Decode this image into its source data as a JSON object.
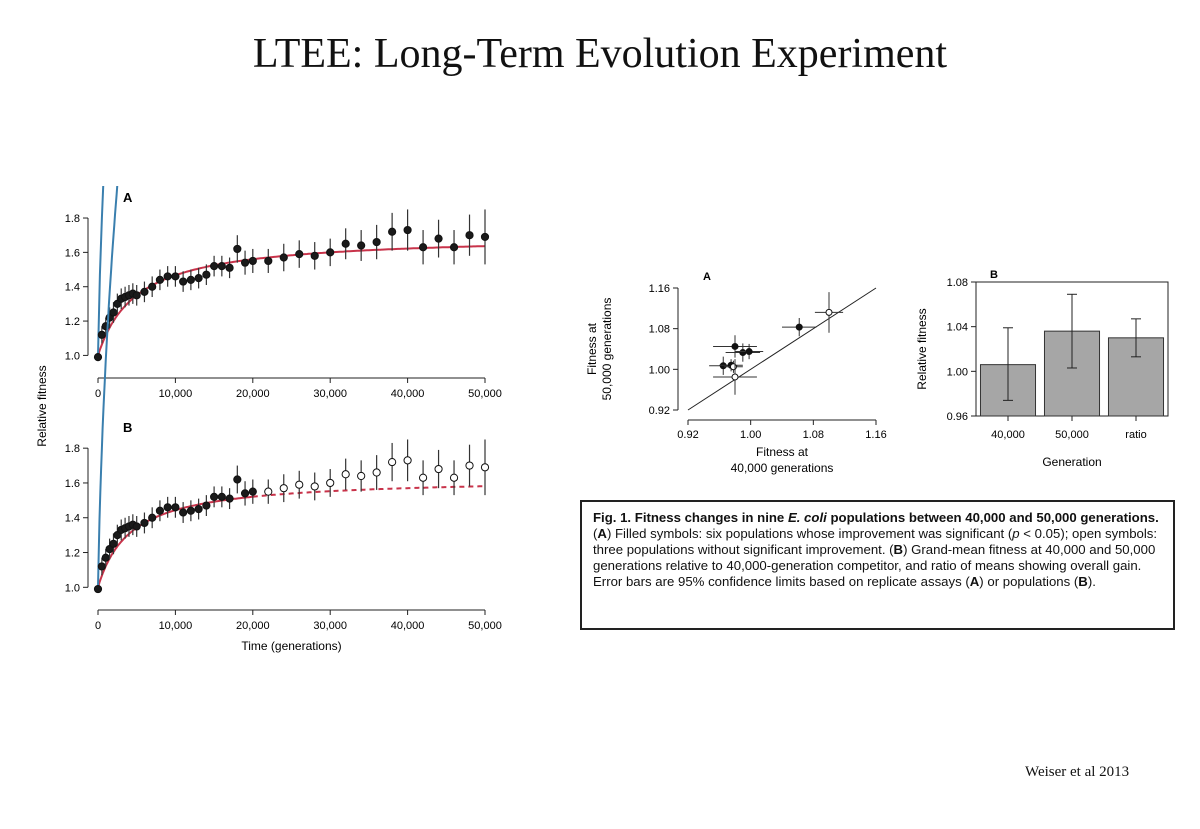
{
  "slide": {
    "title": "LTEE: Long-Term Evolution Experiment",
    "citation": "Weiser et al 2013"
  },
  "caption": {
    "bold_lead": "Fig. 1. Fitness changes in nine",
    "bold_species": "E. coli",
    "bold_tail": "populations between 40,000 and 50,000 generations.",
    "part1_label": "A",
    "part1_text": "Filled symbols: six populations whose improvement was significant",
    "p_symbol": "p",
    "part1_text2": "< 0.05); open symbols: three populations without significant improvement.",
    "part2_label": "B",
    "part2_text": "Grand-mean fitness at 40,000 and 50,000 generations relative to 40,000-generation competitor, and ratio of means showing overall gain. Error bars are 95% confidence limits based on replicate assays",
    "ref_a": "A",
    "or_text": "or populations",
    "ref_b": "B"
  },
  "colors": {
    "hyperbolic_fit": "#c8334a",
    "power_law_fit": "#3a7fae",
    "bar_fill": "#a6a6a6",
    "marker": "#1a1a1a"
  },
  "chart_data": [
    {
      "id": "panel-A-top",
      "type": "scatter",
      "panel_label": "A",
      "ylabel": "Relative fitness",
      "xlabel": "",
      "xlim": [
        0,
        50000
      ],
      "ylim": [
        0.95,
        1.87
      ],
      "x_ticks": [
        0,
        10000,
        20000,
        30000,
        40000,
        50000
      ],
      "x_tick_labels": [
        "0",
        "10,000",
        "20,000",
        "30,000",
        "40,000",
        "50,000"
      ],
      "y_ticks": [
        1.0,
        1.2,
        1.4,
        1.6,
        1.8
      ],
      "y_tick_labels": [
        "1.0",
        "1.2",
        "1.4",
        "1.6",
        "1.8"
      ],
      "points": [
        {
          "x": 0,
          "y": 0.99,
          "e": 0.0
        },
        {
          "x": 500,
          "y": 1.12,
          "e": 0.05
        },
        {
          "x": 1000,
          "y": 1.17,
          "e": 0.05
        },
        {
          "x": 1500,
          "y": 1.22,
          "e": 0.06
        },
        {
          "x": 2000,
          "y": 1.25,
          "e": 0.06
        },
        {
          "x": 2500,
          "y": 1.3,
          "e": 0.06
        },
        {
          "x": 3000,
          "y": 1.33,
          "e": 0.06
        },
        {
          "x": 3500,
          "y": 1.34,
          "e": 0.06
        },
        {
          "x": 4000,
          "y": 1.35,
          "e": 0.06
        },
        {
          "x": 4500,
          "y": 1.36,
          "e": 0.06
        },
        {
          "x": 5000,
          "y": 1.35,
          "e": 0.06
        },
        {
          "x": 6000,
          "y": 1.37,
          "e": 0.06
        },
        {
          "x": 7000,
          "y": 1.4,
          "e": 0.06
        },
        {
          "x": 8000,
          "y": 1.44,
          "e": 0.06
        },
        {
          "x": 9000,
          "y": 1.46,
          "e": 0.06
        },
        {
          "x": 10000,
          "y": 1.46,
          "e": 0.06
        },
        {
          "x": 11000,
          "y": 1.43,
          "e": 0.06
        },
        {
          "x": 12000,
          "y": 1.44,
          "e": 0.06
        },
        {
          "x": 13000,
          "y": 1.45,
          "e": 0.06
        },
        {
          "x": 14000,
          "y": 1.47,
          "e": 0.06
        },
        {
          "x": 15000,
          "y": 1.52,
          "e": 0.06
        },
        {
          "x": 16000,
          "y": 1.52,
          "e": 0.06
        },
        {
          "x": 17000,
          "y": 1.51,
          "e": 0.06
        },
        {
          "x": 18000,
          "y": 1.62,
          "e": 0.08
        },
        {
          "x": 19000,
          "y": 1.54,
          "e": 0.07
        },
        {
          "x": 20000,
          "y": 1.55,
          "e": 0.07
        },
        {
          "x": 22000,
          "y": 1.55,
          "e": 0.07
        },
        {
          "x": 24000,
          "y": 1.57,
          "e": 0.08
        },
        {
          "x": 26000,
          "y": 1.59,
          "e": 0.08
        },
        {
          "x": 28000,
          "y": 1.58,
          "e": 0.08
        },
        {
          "x": 30000,
          "y": 1.6,
          "e": 0.08
        },
        {
          "x": 32000,
          "y": 1.65,
          "e": 0.09
        },
        {
          "x": 34000,
          "y": 1.64,
          "e": 0.09
        },
        {
          "x": 36000,
          "y": 1.66,
          "e": 0.1
        },
        {
          "x": 38000,
          "y": 1.72,
          "e": 0.11
        },
        {
          "x": 40000,
          "y": 1.73,
          "e": 0.12
        },
        {
          "x": 42000,
          "y": 1.63,
          "e": 0.1
        },
        {
          "x": 44000,
          "y": 1.68,
          "e": 0.11
        },
        {
          "x": 46000,
          "y": 1.63,
          "e": 0.1
        },
        {
          "x": 48000,
          "y": 1.7,
          "e": 0.12
        },
        {
          "x": 50000,
          "y": 1.69,
          "e": 0.16
        }
      ],
      "fits": [
        {
          "kind": "hyperbolic",
          "color": "#c8334a",
          "a": 0.7,
          "b": 5000,
          "x_end": 50000,
          "dashed_from": null
        },
        {
          "kind": "power-law",
          "color": "#3a7fae",
          "a": 0.0055,
          "b": 0.445,
          "x_end": 50000,
          "dashed_from": null
        }
      ]
    },
    {
      "id": "panel-B-bottom",
      "type": "scatter",
      "panel_label": "B",
      "ylabel": "",
      "xlabel": "Time (generations)",
      "xlim": [
        0,
        50000
      ],
      "ylim": [
        0.95,
        1.87
      ],
      "x_ticks": [
        0,
        10000,
        20000,
        30000,
        40000,
        50000
      ],
      "x_tick_labels": [
        "0",
        "10,000",
        "20,000",
        "30,000",
        "40,000",
        "50,000"
      ],
      "y_ticks": [
        1.0,
        1.2,
        1.4,
        1.6,
        1.8
      ],
      "y_tick_labels": [
        "1.0",
        "1.2",
        "1.4",
        "1.6",
        "1.8"
      ],
      "open_from_x": 22000,
      "points": [
        {
          "x": 0,
          "y": 0.99,
          "e": 0.0
        },
        {
          "x": 500,
          "y": 1.12,
          "e": 0.05
        },
        {
          "x": 1000,
          "y": 1.17,
          "e": 0.05
        },
        {
          "x": 1500,
          "y": 1.22,
          "e": 0.06
        },
        {
          "x": 2000,
          "y": 1.25,
          "e": 0.06
        },
        {
          "x": 2500,
          "y": 1.3,
          "e": 0.06
        },
        {
          "x": 3000,
          "y": 1.33,
          "e": 0.06
        },
        {
          "x": 3500,
          "y": 1.34,
          "e": 0.06
        },
        {
          "x": 4000,
          "y": 1.35,
          "e": 0.06
        },
        {
          "x": 4500,
          "y": 1.36,
          "e": 0.06
        },
        {
          "x": 5000,
          "y": 1.35,
          "e": 0.06
        },
        {
          "x": 6000,
          "y": 1.37,
          "e": 0.06
        },
        {
          "x": 7000,
          "y": 1.4,
          "e": 0.06
        },
        {
          "x": 8000,
          "y": 1.44,
          "e": 0.06
        },
        {
          "x": 9000,
          "y": 1.46,
          "e": 0.06
        },
        {
          "x": 10000,
          "y": 1.46,
          "e": 0.06
        },
        {
          "x": 11000,
          "y": 1.43,
          "e": 0.06
        },
        {
          "x": 12000,
          "y": 1.44,
          "e": 0.06
        },
        {
          "x": 13000,
          "y": 1.45,
          "e": 0.06
        },
        {
          "x": 14000,
          "y": 1.47,
          "e": 0.06
        },
        {
          "x": 15000,
          "y": 1.52,
          "e": 0.06
        },
        {
          "x": 16000,
          "y": 1.52,
          "e": 0.06
        },
        {
          "x": 17000,
          "y": 1.51,
          "e": 0.06
        },
        {
          "x": 18000,
          "y": 1.62,
          "e": 0.08
        },
        {
          "x": 19000,
          "y": 1.54,
          "e": 0.07
        },
        {
          "x": 20000,
          "y": 1.55,
          "e": 0.07
        },
        {
          "x": 22000,
          "y": 1.55,
          "e": 0.07
        },
        {
          "x": 24000,
          "y": 1.57,
          "e": 0.08
        },
        {
          "x": 26000,
          "y": 1.59,
          "e": 0.08
        },
        {
          "x": 28000,
          "y": 1.58,
          "e": 0.08
        },
        {
          "x": 30000,
          "y": 1.6,
          "e": 0.08
        },
        {
          "x": 32000,
          "y": 1.65,
          "e": 0.09
        },
        {
          "x": 34000,
          "y": 1.64,
          "e": 0.09
        },
        {
          "x": 36000,
          "y": 1.66,
          "e": 0.1
        },
        {
          "x": 38000,
          "y": 1.72,
          "e": 0.11
        },
        {
          "x": 40000,
          "y": 1.73,
          "e": 0.12
        },
        {
          "x": 42000,
          "y": 1.63,
          "e": 0.1
        },
        {
          "x": 44000,
          "y": 1.68,
          "e": 0.11
        },
        {
          "x": 46000,
          "y": 1.63,
          "e": 0.1
        },
        {
          "x": 48000,
          "y": 1.7,
          "e": 0.12
        },
        {
          "x": 50000,
          "y": 1.69,
          "e": 0.16
        }
      ],
      "fits": [
        {
          "kind": "hyperbolic",
          "color": "#c8334a",
          "a": 0.63,
          "b": 4200,
          "x_end": 50000,
          "dashed_from": 20000
        },
        {
          "kind": "power-law",
          "color": "#3a7fae",
          "a": 0.0055,
          "b": 0.445,
          "x_end": 50000,
          "dashed_from": 20000
        }
      ]
    },
    {
      "id": "scatter-40k-50k",
      "type": "scatter",
      "panel_label": "A",
      "xlabel": [
        "Fitness at",
        "40,000 generations"
      ],
      "ylabel": [
        "Fitness at",
        "50,000 generations"
      ],
      "xlim": [
        0.92,
        1.16
      ],
      "ylim": [
        0.92,
        1.16
      ],
      "x_ticks": [
        0.92,
        1.0,
        1.08,
        1.16
      ],
      "x_tick_labels": [
        "0.92",
        "1.00",
        "1.08",
        "1.16"
      ],
      "y_ticks": [
        0.92,
        1.0,
        1.08,
        1.16
      ],
      "y_tick_labels": [
        "0.92",
        "1.00",
        "1.08",
        "1.16"
      ],
      "diagonal": true,
      "points": [
        {
          "x": 0.965,
          "y": 1.007,
          "ex": 0.018,
          "ey": 0.018,
          "filled": true
        },
        {
          "x": 0.98,
          "y": 1.045,
          "ex": 0.028,
          "ey": 0.022,
          "filled": true
        },
        {
          "x": 0.99,
          "y": 1.033,
          "ex": 0.022,
          "ey": 0.018,
          "filled": true
        },
        {
          "x": 0.998,
          "y": 1.035,
          "ex": 0.018,
          "ey": 0.015,
          "filled": true
        },
        {
          "x": 0.975,
          "y": 1.008,
          "ex": 0.015,
          "ey": 0.012,
          "filled": true
        },
        {
          "x": 1.062,
          "y": 1.083,
          "ex": 0.022,
          "ey": 0.018,
          "filled": true
        },
        {
          "x": 0.978,
          "y": 1.005,
          "ex": 0.012,
          "ey": 0.012,
          "filled": false
        },
        {
          "x": 0.98,
          "y": 0.985,
          "ex": 0.028,
          "ey": 0.035,
          "filled": false
        },
        {
          "x": 1.1,
          "y": 1.112,
          "ex": 0.018,
          "ey": 0.04,
          "filled": false
        }
      ]
    },
    {
      "id": "bar-generation",
      "type": "bar",
      "panel_label": "B",
      "xlabel": "Generation",
      "ylabel": "Relative fitness",
      "categories": [
        "40,000",
        "50,000",
        "ratio"
      ],
      "values": [
        1.006,
        1.036,
        1.03
      ],
      "err_low": [
        0.974,
        1.003,
        1.013
      ],
      "err_high": [
        1.039,
        1.069,
        1.047
      ],
      "ylim": [
        0.96,
        1.08
      ],
      "y_ticks": [
        0.96,
        1.0,
        1.04,
        1.08
      ],
      "y_tick_labels": [
        "0.96",
        "1.00",
        "1.04",
        "1.08"
      ]
    }
  ]
}
